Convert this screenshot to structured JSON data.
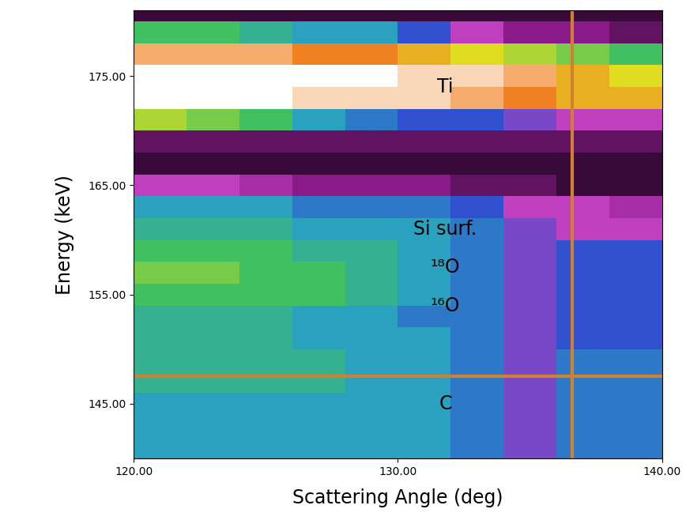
{
  "chart_data": {
    "type": "heatmap",
    "x_label": "Scattering Angle (deg)",
    "y_label": "Energy (keV)",
    "xlim": [
      120,
      140
    ],
    "ylim": [
      140,
      181
    ],
    "xticks": [
      {
        "value": 120,
        "label": "120.00"
      },
      {
        "value": 130,
        "label": "130.00"
      },
      {
        "value": 140,
        "label": "140.00"
      }
    ],
    "yticks": [
      {
        "value": 145,
        "label": "145.00"
      },
      {
        "value": 155,
        "label": "155.00"
      },
      {
        "value": 165,
        "label": "165.00"
      },
      {
        "value": 175,
        "label": "175.00"
      }
    ],
    "x_edges": [
      120,
      122,
      124,
      126,
      128,
      130,
      132,
      134,
      136,
      138,
      140
    ],
    "y_edges": [
      140,
      142,
      144,
      146,
      148,
      150,
      152,
      154,
      156,
      158,
      160,
      162,
      164,
      166,
      168,
      170,
      172,
      174,
      176,
      178,
      180,
      182
    ],
    "color_range": [
      0,
      10
    ],
    "cells": [
      [
        5,
        5,
        5,
        5,
        5,
        5,
        4.5,
        3.5,
        4.5,
        4.5
      ],
      [
        5,
        5,
        5,
        5,
        5,
        5,
        4.5,
        3.5,
        4.5,
        4.5
      ],
      [
        5,
        5,
        5,
        5,
        5,
        5,
        4.5,
        3.5,
        4.5,
        4.5
      ],
      [
        5.5,
        5.5,
        5.5,
        5.5,
        5,
        5,
        4.5,
        3.5,
        4.5,
        4.5
      ],
      [
        5.5,
        5.5,
        5.5,
        5.5,
        5,
        5,
        4.5,
        3.5,
        4.5,
        4.5
      ],
      [
        5.5,
        5.5,
        5.5,
        5,
        5,
        5,
        4.5,
        3.5,
        4,
        4
      ],
      [
        5.5,
        5.5,
        5.5,
        5,
        5,
        4.5,
        4.5,
        3.5,
        4,
        4
      ],
      [
        6,
        6,
        6,
        6,
        5.5,
        5,
        4.5,
        3.5,
        4,
        4
      ],
      [
        6.5,
        6.5,
        6,
        6,
        5.5,
        5,
        4.5,
        3.5,
        4,
        4
      ],
      [
        6,
        6,
        6,
        5.5,
        5.5,
        5,
        4.5,
        3.5,
        4,
        4
      ],
      [
        5.5,
        5.5,
        5.5,
        5,
        5,
        5,
        4.5,
        3.5,
        3,
        3
      ],
      [
        5,
        5,
        5,
        4.5,
        4.5,
        4.5,
        4,
        3,
        3,
        2.5
      ],
      [
        3,
        3,
        2.5,
        2,
        2,
        2,
        1.5,
        1.5,
        1,
        1
      ],
      [
        1,
        1,
        1,
        1,
        1,
        1,
        1,
        1,
        1,
        1
      ],
      [
        1.5,
        1.5,
        1.5,
        1.5,
        1.5,
        1.5,
        1.5,
        1.5,
        1.5,
        1.5
      ],
      [
        7,
        6.5,
        6,
        5,
        4.5,
        4,
        4,
        3.5,
        3,
        3
      ],
      [
        10,
        10,
        10,
        9.5,
        9.5,
        9.5,
        9,
        8.5,
        8,
        8
      ],
      [
        10,
        10,
        10,
        10,
        10,
        9.5,
        9.5,
        9,
        8,
        7.5
      ],
      [
        9,
        9,
        9,
        8.5,
        8.5,
        8,
        7.5,
        7,
        6.5,
        6
      ],
      [
        6,
        6,
        5.5,
        5,
        5,
        4,
        3,
        2,
        2,
        1.5
      ],
      [
        1,
        1,
        1,
        1,
        1,
        1,
        1,
        1,
        1,
        1
      ]
    ],
    "crosshair": {
      "x": 136.6,
      "y": 147.5
    },
    "annotations": [
      {
        "text": "Ti",
        "x": 131.8,
        "y": 174
      },
      {
        "text": "Si surf.",
        "x": 131.8,
        "y": 161
      },
      {
        "text": "¹⁸O",
        "x": 131.8,
        "y": 157.5
      },
      {
        "text": "¹⁶O",
        "x": 131.8,
        "y": 154
      },
      {
        "text": "C",
        "x": 131.8,
        "y": 145
      }
    ]
  }
}
